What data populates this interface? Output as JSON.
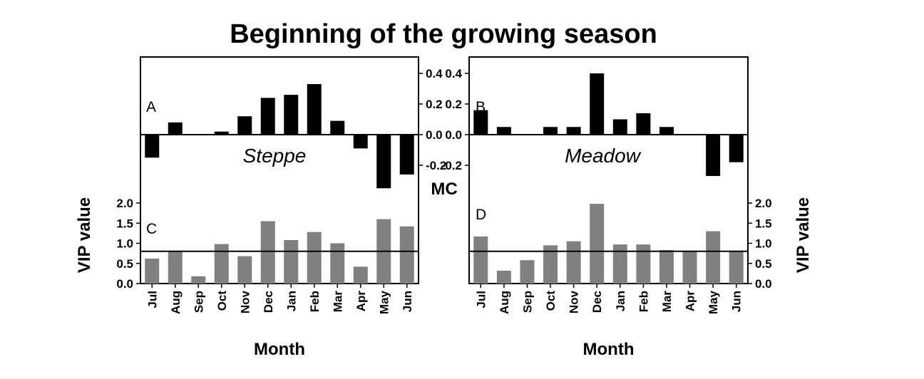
{
  "figure": {
    "title": "Beginning of the growing season"
  },
  "chart_data": [
    {
      "panel": "A",
      "type": "bar",
      "region_label": "Steppe",
      "ylabel": "MC",
      "ylim": [
        -0.37,
        0.5
      ],
      "yticks": [
        "0.4",
        "0.2",
        "0.0",
        "-0.2"
      ],
      "ytick_values": [
        0.4,
        0.2,
        0.0,
        -0.2
      ],
      "categories": [
        "Jul",
        "Aug",
        "Sep",
        "Oct",
        "Nov",
        "Dec",
        "Jan",
        "Feb",
        "Mar",
        "Apr",
        "May",
        "Jun"
      ],
      "values": [
        -0.15,
        0.08,
        0.0,
        0.02,
        0.12,
        0.24,
        0.26,
        0.33,
        0.09,
        -0.09,
        -0.35,
        -0.26
      ],
      "color": "#000000"
    },
    {
      "panel": "B",
      "type": "bar",
      "region_label": "Meadow",
      "ylabel": "MC",
      "ylim": [
        -0.37,
        0.5
      ],
      "yticks": [
        "0.4",
        "0.2",
        "0.0",
        "-0.2"
      ],
      "ytick_values": [
        0.4,
        0.2,
        0.0,
        -0.2
      ],
      "categories": [
        "Jul",
        "Aug",
        "Sep",
        "Oct",
        "Nov",
        "Dec",
        "Jan",
        "Feb",
        "Mar",
        "Apr",
        "May",
        "Jun"
      ],
      "values": [
        0.16,
        0.05,
        0.0,
        0.05,
        0.05,
        0.4,
        0.1,
        0.14,
        0.05,
        0.0,
        -0.27,
        -0.18
      ],
      "color": "#000000"
    },
    {
      "panel": "C",
      "type": "bar",
      "xlabel": "Month",
      "ylabel": "VIP value",
      "ylim": [
        0,
        2.2
      ],
      "yticks": [
        "2.0",
        "1.5",
        "1.0",
        "0.5",
        "0.0"
      ],
      "ytick_values": [
        2.0,
        1.5,
        1.0,
        0.5,
        0.0
      ],
      "threshold": 0.8,
      "categories": [
        "Jul",
        "Aug",
        "Sep",
        "Oct",
        "Nov",
        "Dec",
        "Jan",
        "Feb",
        "Mar",
        "Apr",
        "May",
        "Jun"
      ],
      "values": [
        0.62,
        0.8,
        0.18,
        0.98,
        0.68,
        1.55,
        1.08,
        1.28,
        1.0,
        0.42,
        1.6,
        1.42
      ],
      "color": "#808080"
    },
    {
      "panel": "D",
      "type": "bar",
      "xlabel": "Month",
      "ylabel": "VIP value",
      "ylim": [
        0,
        2.2
      ],
      "yticks": [
        "2.0",
        "1.5",
        "1.0",
        "0.5",
        "0.0"
      ],
      "ytick_values": [
        2.0,
        1.5,
        1.0,
        0.5,
        0.0
      ],
      "threshold": 0.8,
      "categories": [
        "Jul",
        "Aug",
        "Sep",
        "Oct",
        "Nov",
        "Dec",
        "Jan",
        "Feb",
        "Mar",
        "Apr",
        "May",
        "Jun"
      ],
      "values": [
        1.17,
        0.32,
        0.58,
        0.95,
        1.05,
        1.98,
        0.97,
        0.97,
        0.83,
        0.8,
        1.3,
        0.8
      ],
      "color": "#808080"
    }
  ]
}
